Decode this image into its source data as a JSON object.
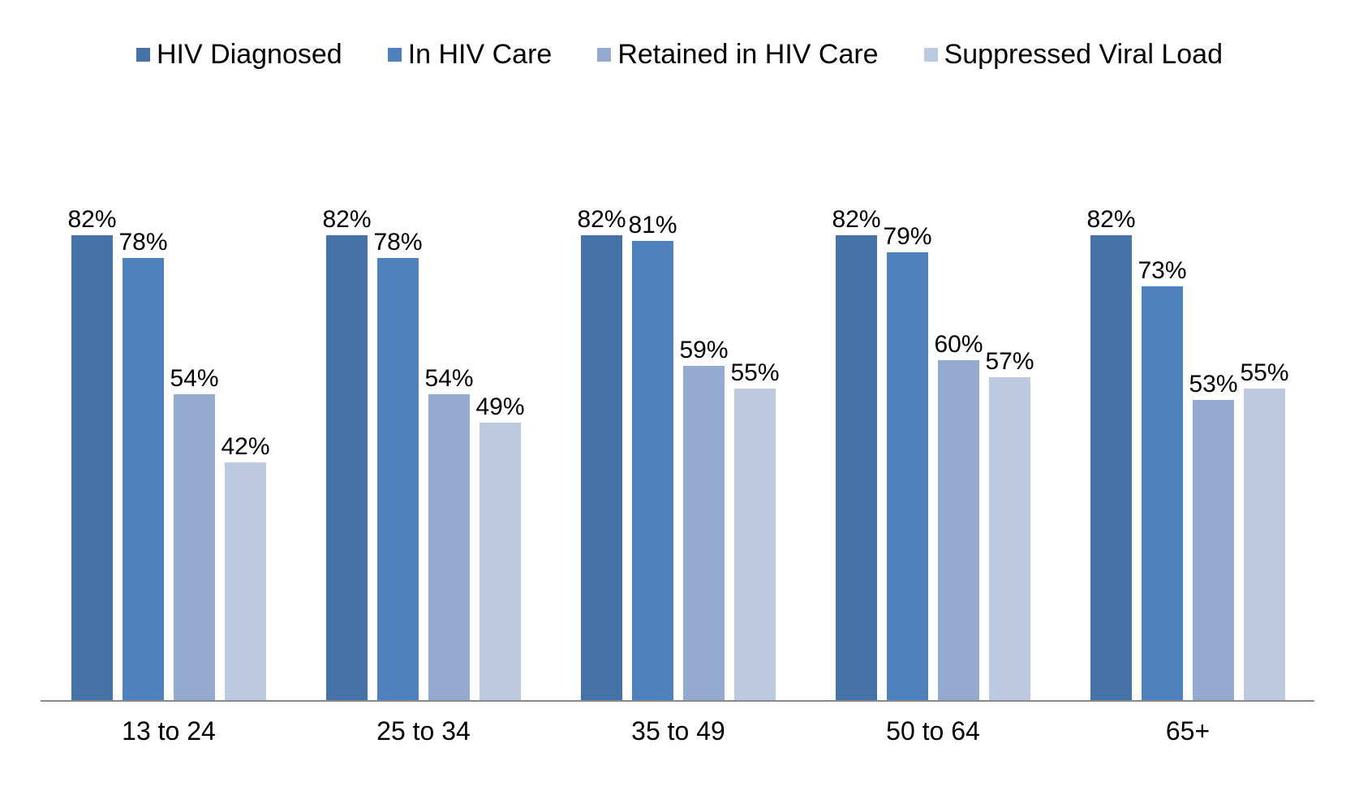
{
  "chart_data": {
    "type": "bar",
    "categories": [
      "13 to 24",
      "25 to 34",
      "35 to 49",
      "50 to 64",
      "65+"
    ],
    "series": [
      {
        "name": "HIV Diagnosed",
        "values": [
          82,
          82,
          82,
          82,
          82
        ],
        "color": "#4673A7"
      },
      {
        "name": "In HIV Care",
        "values": [
          78,
          78,
          81,
          79,
          73
        ],
        "color": "#4F81BD"
      },
      {
        "name": "Retained in HIV Care",
        "values": [
          54,
          54,
          59,
          60,
          53
        ],
        "color": "#95AACF"
      },
      {
        "name": "Suppressed Viral Load",
        "values": [
          42,
          49,
          55,
          57,
          55
        ],
        "color": "#BDC9E1"
      }
    ],
    "value_suffix": "%",
    "ylim": [
      0,
      100
    ],
    "legend_position": "top",
    "grid": false,
    "data_labels": true,
    "title": "",
    "xlabel": "",
    "ylabel": ""
  },
  "colors": {
    "axis": "#898989",
    "text": "#000000"
  }
}
